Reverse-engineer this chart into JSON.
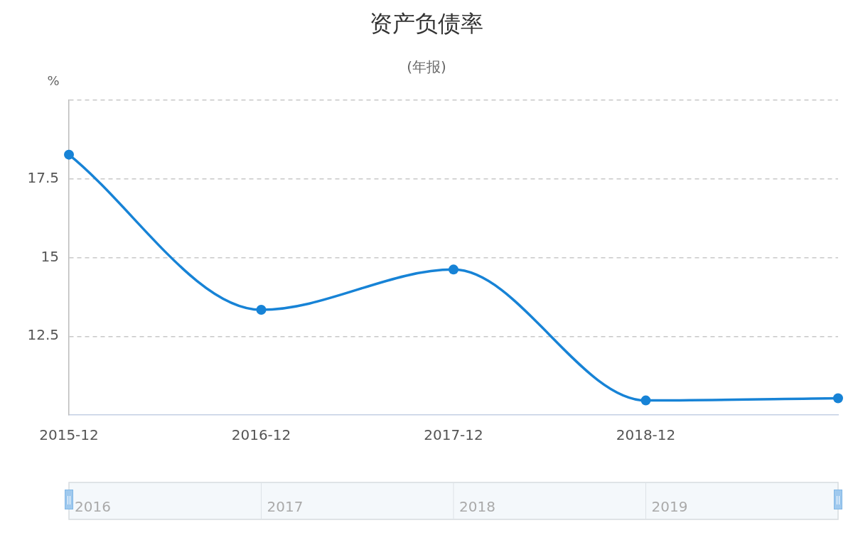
{
  "chart_data": {
    "type": "line",
    "title": "资产负债率",
    "subtitle": "(年报)",
    "ylabel": "%",
    "categories": [
      "2015-12",
      "2016-12",
      "2017-12",
      "2018-12",
      null
    ],
    "series": [
      {
        "color": "#1783d6",
        "values": [
          18.27,
          13.34,
          14.62,
          10.46,
          10.53
        ]
      }
    ],
    "ylim": [
      10,
      20
    ],
    "yticks": [
      {
        "value": 10,
        "label": null
      },
      12.5,
      15,
      17.5,
      {
        "value": 20,
        "label": null
      }
    ],
    "grid": "y",
    "legend": false,
    "marker": "circle",
    "line_style": "solid",
    "annotations": [
      "2016",
      "2017",
      "2018",
      "2019"
    ]
  }
}
